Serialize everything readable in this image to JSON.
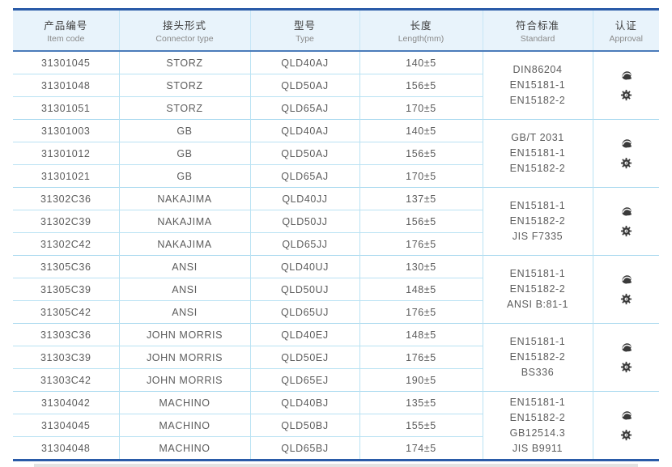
{
  "colors": {
    "accent_dark_blue": "#2a5ba8",
    "header_underline_blue": "#4b7cba",
    "header_bg": "#e8f3fb",
    "grid_line": "#b9e2f3",
    "body_text": "#5c5c5c"
  },
  "table": {
    "columns": [
      {
        "zh": "产品编号",
        "en": "Item code"
      },
      {
        "zh": "接头形式",
        "en": "Connector type"
      },
      {
        "zh": "型号",
        "en": "Type"
      },
      {
        "zh": "长度",
        "en": "Length(mm)"
      },
      {
        "zh": "符合标准",
        "en": "Standard"
      },
      {
        "zh": "认证",
        "en": "Approval"
      }
    ],
    "groups": [
      {
        "rows": [
          {
            "code": "31301045",
            "connector": "STORZ",
            "type": "QLD40AJ",
            "length": "140±5"
          },
          {
            "code": "31301048",
            "connector": "STORZ",
            "type": "QLD50AJ",
            "length": "156±5"
          },
          {
            "code": "31301051",
            "connector": "STORZ",
            "type": "QLD65AJ",
            "length": "170±5"
          }
        ],
        "standards": [
          "DIN86204",
          "EN15181-1",
          "EN15182-2"
        ],
        "approval_icons": [
          "certificate-stamp-icon",
          "gear-seal-icon"
        ]
      },
      {
        "rows": [
          {
            "code": "31301003",
            "connector": "GB",
            "type": "QLD40AJ",
            "length": "140±5"
          },
          {
            "code": "31301012",
            "connector": "GB",
            "type": "QLD50AJ",
            "length": "156±5"
          },
          {
            "code": "31301021",
            "connector": "GB",
            "type": "QLD65AJ",
            "length": "170±5"
          }
        ],
        "standards": [
          "GB/T 2031",
          "EN15181-1",
          "EN15182-2"
        ],
        "approval_icons": [
          "certificate-stamp-icon",
          "gear-seal-icon"
        ]
      },
      {
        "rows": [
          {
            "code": "31302C36",
            "connector": "NAKAJIMA",
            "type": "QLD40JJ",
            "length": "137±5"
          },
          {
            "code": "31302C39",
            "connector": "NAKAJIMA",
            "type": "QLD50JJ",
            "length": "156±5"
          },
          {
            "code": "31302C42",
            "connector": "NAKAJIMA",
            "type": "QLD65JJ",
            "length": "176±5"
          }
        ],
        "standards": [
          "EN15181-1",
          "EN15182-2",
          "JIS F7335"
        ],
        "approval_icons": [
          "certificate-stamp-icon",
          "gear-seal-icon"
        ]
      },
      {
        "rows": [
          {
            "code": "31305C36",
            "connector": "ANSI",
            "type": "QLD40UJ",
            "length": "130±5"
          },
          {
            "code": "31305C39",
            "connector": "ANSI",
            "type": "QLD50UJ",
            "length": "148±5"
          },
          {
            "code": "31305C42",
            "connector": "ANSI",
            "type": "QLD65UJ",
            "length": "176±5"
          }
        ],
        "standards": [
          "EN15181-1",
          "EN15182-2",
          "ANSI B:81-1"
        ],
        "approval_icons": [
          "certificate-stamp-icon",
          "gear-seal-icon"
        ]
      },
      {
        "rows": [
          {
            "code": "31303C36",
            "connector": "JOHN MORRIS",
            "type": "QLD40EJ",
            "length": "148±5"
          },
          {
            "code": "31303C39",
            "connector": "JOHN MORRIS",
            "type": "QLD50EJ",
            "length": "176±5"
          },
          {
            "code": "31303C42",
            "connector": "JOHN MORRIS",
            "type": "QLD65EJ",
            "length": "190±5"
          }
        ],
        "standards": [
          "EN15181-1",
          "EN15182-2",
          "BS336"
        ],
        "approval_icons": [
          "certificate-stamp-icon",
          "gear-seal-icon"
        ]
      },
      {
        "rows": [
          {
            "code": "31304042",
            "connector": "MACHINO",
            "type": "QLD40BJ",
            "length": "135±5"
          },
          {
            "code": "31304045",
            "connector": "MACHINO",
            "type": "QLD50BJ",
            "length": "155±5"
          },
          {
            "code": "31304048",
            "connector": "MACHINO",
            "type": "QLD65BJ",
            "length": "174±5"
          }
        ],
        "standards": [
          "EN15181-1",
          "EN15182-2",
          "GB12514.3",
          "JIS B9911"
        ],
        "approval_icons": [
          "certificate-stamp-icon",
          "gear-seal-icon"
        ]
      }
    ]
  }
}
